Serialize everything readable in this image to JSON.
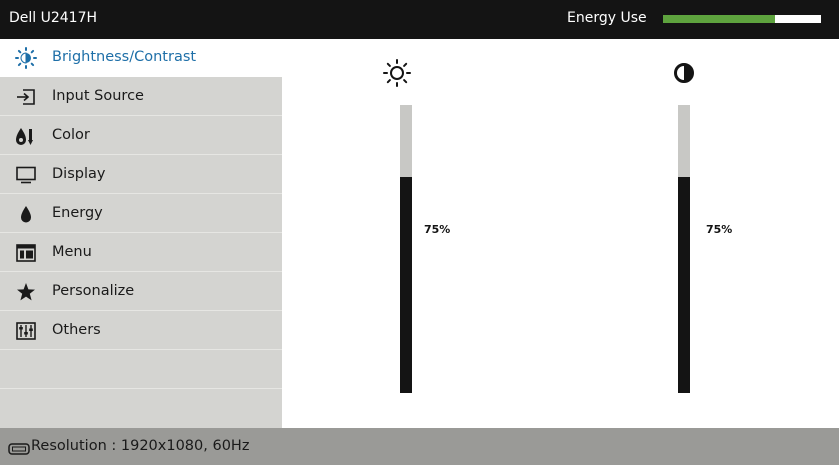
{
  "window": {
    "title": "Dell U2417H"
  },
  "energy": {
    "label": "Energy Use",
    "level_percent": 71,
    "fill_color": "#5ea33e"
  },
  "sidebar": {
    "items": [
      {
        "label": "Brightness/Contrast",
        "icon": "brightness-icon",
        "active": true
      },
      {
        "label": "Input Source",
        "icon": "input-source-icon",
        "active": false
      },
      {
        "label": "Color",
        "icon": "color-icon",
        "active": false
      },
      {
        "label": "Display",
        "icon": "display-icon",
        "active": false
      },
      {
        "label": "Energy",
        "icon": "energy-icon",
        "active": false
      },
      {
        "label": "Menu",
        "icon": "menu-icon",
        "active": false
      },
      {
        "label": "Personalize",
        "icon": "star-icon",
        "active": false
      },
      {
        "label": "Others",
        "icon": "others-icon",
        "active": false
      }
    ],
    "active_color": "#1e6fa8"
  },
  "sliders": {
    "brightness": {
      "icon": "sun-icon",
      "value_percent": 75,
      "value_label": "75%"
    },
    "contrast": {
      "icon": "contrast-icon",
      "value_percent": 75,
      "value_label": "75%"
    }
  },
  "status": {
    "text": "Resolution : 1920x1080, 60Hz",
    "icon": "connector-icon"
  }
}
